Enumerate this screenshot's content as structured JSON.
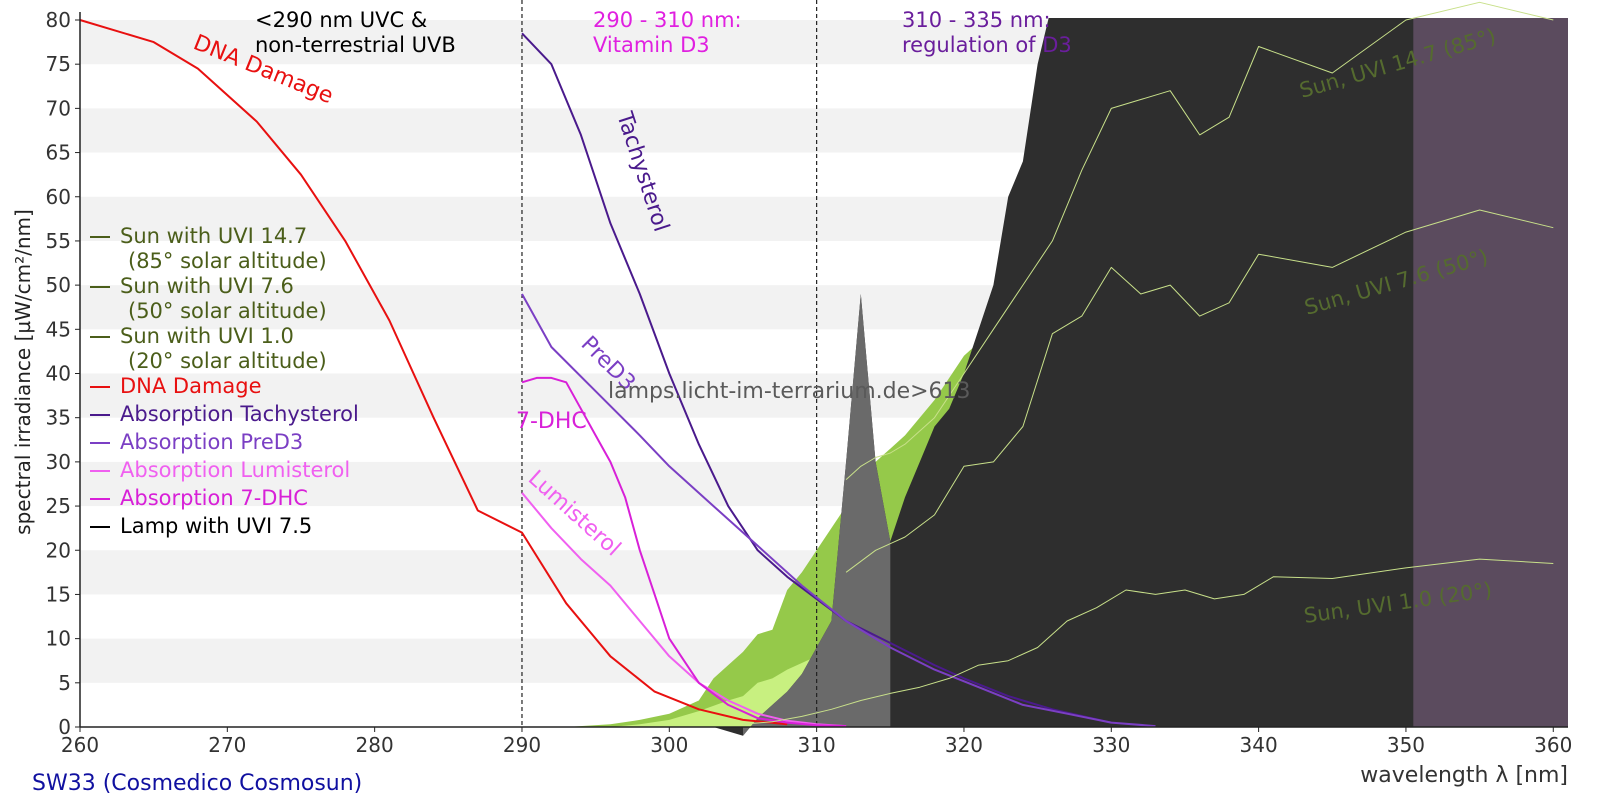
{
  "chart_data": {
    "type": "line",
    "xlabel": "wavelength λ [nm]",
    "ylabel": "spectral irradiance [µW/cm²/nm]",
    "xlim": [
      260,
      361
    ],
    "ylim": [
      0,
      80
    ],
    "x_ticks": [
      260,
      270,
      280,
      290,
      300,
      310,
      320,
      330,
      340,
      350,
      360
    ],
    "y_ticks": [
      0,
      5,
      10,
      15,
      20,
      25,
      30,
      35,
      40,
      45,
      50,
      55,
      60,
      65,
      70,
      75,
      80
    ],
    "grid": "horizontal alternating bands",
    "legend_position": "left",
    "source_label": "SW33 (Cosmedico Cosmosun)",
    "watermark": "lamps.licht-im-terrarium.de>613",
    "vlines": [
      290,
      310
    ],
    "region_labels": [
      {
        "text": "<290 nm UVC &\nnon-terrestrial UVB",
        "color": "#000000"
      },
      {
        "text": "290 - 310 nm:\nVitamin D3",
        "color": "#e020e0"
      },
      {
        "text": "310 - 335 nm:\nregulation of D3",
        "color": "#6a1e9c"
      }
    ],
    "legend": [
      {
        "label": "Sun with UVI 14.7",
        "sub": "(85° solar altitude)",
        "color": "#4b5e1a"
      },
      {
        "label": "Sun with UVI 7.6",
        "sub": "(50° solar altitude)",
        "color": "#4b5e1a"
      },
      {
        "label": "Sun with UVI 1.0",
        "sub": "(20° solar altitude)",
        "color": "#4b5e1a"
      },
      {
        "label": "DNA Damage",
        "sub": "",
        "color": "#e81010"
      },
      {
        "label": "Absorption Tachysterol",
        "sub": "",
        "color": "#4a1a8c"
      },
      {
        "label": "Absorption PreD3",
        "sub": "",
        "color": "#7b3fc4"
      },
      {
        "label": "Absorption Lumisterol",
        "sub": "",
        "color": "#f060f0"
      },
      {
        "label": "Absorption 7-DHC",
        "sub": "",
        "color": "#d820d8"
      },
      {
        "label": "Lamp with UVI 7.5",
        "sub": "",
        "color": "#000000"
      }
    ],
    "curve_labels": [
      {
        "text": "DNA Damage",
        "color": "#e81010"
      },
      {
        "text": "Tachysterol",
        "color": "#4a1a8c"
      },
      {
        "text": "PreD3",
        "color": "#7b3fc4"
      },
      {
        "text": "7-DHC",
        "color": "#d820d8"
      },
      {
        "text": "Lumisterol",
        "color": "#f060f0"
      },
      {
        "text": "Sun, UVI 14.7 (85°)",
        "color": "#556b2f"
      },
      {
        "text": "Sun, UVI 7.6 (50°)",
        "color": "#556b2f"
      },
      {
        "text": "Sun, UVI 1.0 (20°)",
        "color": "#556b2f"
      }
    ],
    "series": [
      {
        "name": "DNA Damage",
        "color": "#e81010",
        "x": [
          260,
          265,
          268,
          272,
          275,
          278,
          281,
          284,
          287,
          290,
          293,
          296,
          299,
          302,
          305,
          308
        ],
        "y": [
          80,
          77.5,
          74.5,
          68.5,
          62.5,
          55,
          46,
          35,
          24.5,
          22,
          14,
          8,
          4,
          2,
          0.8,
          0.3
        ]
      },
      {
        "name": "Absorption Tachysterol",
        "color": "#4a1a8c",
        "x": [
          290,
          292,
          294,
          296,
          298,
          300,
          302,
          304,
          306,
          308,
          310,
          312,
          315,
          318,
          320,
          323,
          326,
          330
        ],
        "y": [
          78.5,
          75,
          67,
          57,
          49,
          40,
          32,
          25,
          20,
          17,
          14.5,
          12,
          9.5,
          7,
          5.5,
          3.5,
          2,
          0.5
        ]
      },
      {
        "name": "Absorption PreD3",
        "color": "#7b3fc4",
        "x": [
          290,
          292,
          295,
          298,
          300,
          303,
          306,
          309,
          312,
          315,
          318,
          321,
          324,
          327,
          330,
          333
        ],
        "y": [
          49,
          43,
          38,
          33,
          29.5,
          25,
          20.5,
          16,
          12,
          9,
          6.5,
          4.5,
          2.5,
          1.5,
          0.5,
          0.1
        ]
      },
      {
        "name": "Absorption Lumisterol",
        "color": "#f060f0",
        "x": [
          290,
          292,
          294,
          296,
          298,
          300,
          302,
          304,
          306,
          308,
          310,
          312
        ],
        "y": [
          26.5,
          22.5,
          19,
          16,
          12,
          8,
          5,
          3,
          1.5,
          0.7,
          0.3,
          0.1
        ]
      },
      {
        "name": "Absorption 7-DHC",
        "color": "#d820d8",
        "x": [
          290,
          291,
          292,
          293,
          294,
          295,
          296,
          297,
          298,
          299,
          300,
          302,
          304,
          306,
          308,
          310,
          312
        ],
        "y": [
          39,
          39.5,
          39.5,
          39,
          36,
          33,
          30,
          26,
          20,
          15,
          10,
          5,
          2.5,
          1,
          0.5,
          0.2,
          0.1
        ]
      },
      {
        "name": "Sun with UVI 14.7",
        "color": "#c8e08a",
        "x": [
          312,
          313,
          314,
          315,
          316,
          318,
          320,
          322,
          324,
          326,
          328,
          330,
          332,
          334,
          336,
          338,
          340,
          345,
          350,
          355,
          360
        ],
        "y": [
          28,
          29.5,
          30.5,
          31,
          32,
          35,
          40,
          45,
          50,
          55,
          63,
          70,
          71,
          72,
          67,
          69,
          77,
          74,
          80,
          82,
          80
        ]
      },
      {
        "name": "Sun with UVI 7.6",
        "color": "#c8e08a",
        "x": [
          312,
          314,
          316,
          318,
          320,
          322,
          324,
          326,
          328,
          330,
          332,
          334,
          336,
          338,
          340,
          345,
          350,
          355,
          360
        ],
        "y": [
          17.5,
          20,
          21.5,
          24,
          29.5,
          30,
          34,
          44.5,
          46.5,
          52,
          49,
          50,
          46.5,
          48,
          53.5,
          52,
          56,
          58.5,
          56.5
        ]
      },
      {
        "name": "Sun with UVI 1.0",
        "color": "#c8e08a",
        "x": [
          305,
          307,
          309,
          311,
          313,
          315,
          317,
          319,
          321,
          323,
          325,
          327,
          329,
          331,
          333,
          335,
          337,
          339,
          341,
          345,
          350,
          355,
          360
        ],
        "y": [
          0.3,
          0.6,
          1.2,
          2,
          3,
          3.8,
          4.5,
          5.5,
          7,
          7.5,
          9,
          12,
          13.5,
          15.5,
          15,
          15.5,
          14.5,
          15,
          17,
          16.8,
          18,
          19,
          18.5
        ]
      }
    ],
    "sun_band_dark_green": {
      "name": "Sun with UVI 14.7 (filled)",
      "color": "#95c94a",
      "x": [
        293,
        296,
        298,
        300,
        302,
        303,
        304,
        305,
        306,
        307,
        308,
        309,
        310,
        312,
        314,
        316,
        318,
        320,
        322
      ],
      "y": [
        0,
        0.3,
        0.8,
        1.5,
        3,
        5.5,
        7,
        8.5,
        10.5,
        11,
        15.5,
        17.5,
        20,
        25,
        30,
        33,
        37,
        42,
        45
      ]
    },
    "sun_band_light_green": {
      "name": "Sun with UVI 7.6 (filled)",
      "color": "#c8f080",
      "x": [
        296,
        298,
        300,
        302,
        304,
        305,
        306,
        307,
        308,
        310,
        311,
        312
      ],
      "y": [
        0,
        0.3,
        0.8,
        1.8,
        3,
        3.5,
        5,
        5.5,
        6.5,
        8,
        10,
        15
      ]
    },
    "lamp": {
      "name": "Lamp with UVI 7.5",
      "color": "#2e2e2e",
      "x": [
        303,
        304,
        305,
        306,
        307,
        308,
        309,
        310,
        311,
        312,
        313,
        314,
        315,
        316,
        317,
        318,
        319,
        320,
        321,
        322,
        323,
        324,
        325,
        326,
        327,
        350,
        360.5
      ],
      "y": [
        0,
        -0.5,
        -1,
        1,
        2.5,
        4,
        6,
        9,
        12,
        30,
        49,
        30,
        21,
        26,
        30,
        34,
        36,
        40,
        45,
        50,
        60,
        64,
        75,
        82,
        82,
        82,
        82
      ]
    },
    "lamp_mid_fill": {
      "x_from": 305,
      "x_to": 315,
      "color": "#6a6a6a"
    },
    "lamp_uva_fill": {
      "x_from": 350.5,
      "x_to": 361,
      "color": "#5b4b5e"
    }
  }
}
